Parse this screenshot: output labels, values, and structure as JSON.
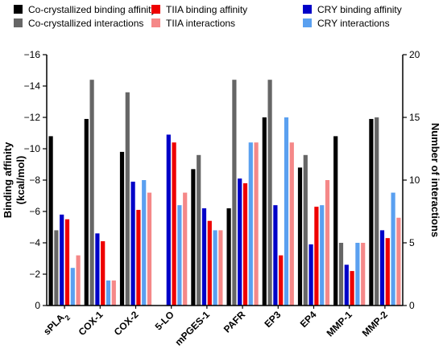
{
  "chart_data": {
    "type": "bar",
    "categories": [
      "sPLA",
      "COX-1",
      "COX-2",
      "5-LO",
      "mPGES-1",
      "PAFR",
      "EP3",
      "EP4",
      "MMP-1",
      "MMP-2"
    ],
    "category_subscripts": [
      "2",
      "",
      "",
      "",
      "",
      "",
      "",
      "",
      "",
      ""
    ],
    "left_axis": {
      "label_line1": "Binding affinity",
      "label_line2": "(kcal/mol)",
      "ylim": [
        0,
        -16
      ],
      "ticks": [
        0,
        -2,
        -4,
        -6,
        -8,
        -10,
        -12,
        -14,
        -16
      ],
      "tick_labels": [
        "0",
        "−2",
        "−4",
        "−6",
        "−8",
        "−10",
        "−12",
        "−14",
        "−16"
      ]
    },
    "right_axis": {
      "label": "Number of interactions",
      "ylim": [
        0,
        20
      ],
      "ticks": [
        0,
        5,
        10,
        15,
        20
      ],
      "tick_labels": [
        "0",
        "5",
        "10",
        "15",
        "20"
      ]
    },
    "series": [
      {
        "name": "Co-crystallized binding affinity",
        "axis": "left",
        "color": "#000000",
        "values": [
          -10.8,
          -11.9,
          -9.8,
          null,
          -8.7,
          -6.2,
          -12.0,
          -8.8,
          -10.8,
          -11.9
        ]
      },
      {
        "name": "Co-crystallized interactions",
        "axis": "right",
        "color": "#666666",
        "values": [
          6,
          18,
          17,
          null,
          12,
          18,
          18,
          12,
          5,
          15
        ]
      },
      {
        "name": "TIIA binding affinity",
        "axis": "left",
        "color": "#ee0000",
        "values": [
          -5.5,
          -4.1,
          -6.1,
          -10.4,
          -5.4,
          -7.8,
          -3.2,
          -6.3,
          -2.2,
          -4.3
        ]
      },
      {
        "name": "TIIA interactions",
        "axis": "right",
        "color": "#f58888",
        "values": [
          4,
          2,
          9,
          9,
          6,
          13,
          13,
          10,
          5,
          7
        ]
      },
      {
        "name": "CRY binding affinity",
        "axis": "left",
        "color": "#0000c8",
        "values": [
          -5.8,
          -4.6,
          -7.9,
          -10.9,
          -6.2,
          -8.1,
          -6.4,
          -3.9,
          -2.6,
          -4.8
        ]
      },
      {
        "name": "CRY interactions",
        "axis": "right",
        "color": "#5aa0f0",
        "values": [
          3,
          2,
          10,
          8,
          6,
          13,
          15,
          8,
          5,
          9
        ]
      }
    ],
    "series_order": [
      0,
      1,
      4,
      2,
      5,
      3
    ],
    "legend_placement": "top",
    "grid": false
  }
}
